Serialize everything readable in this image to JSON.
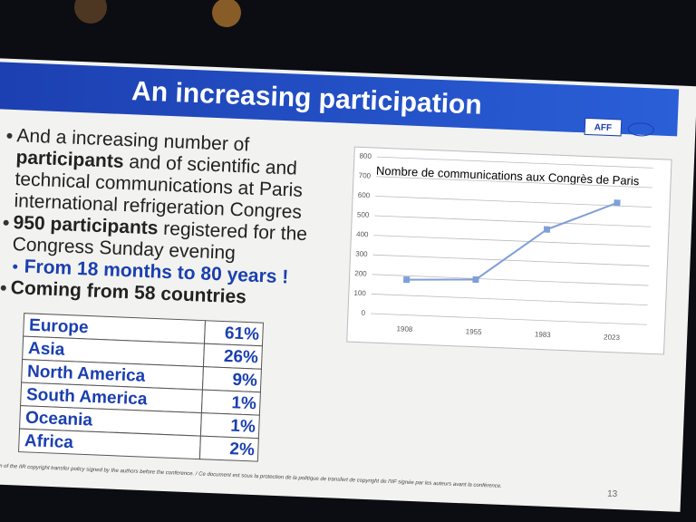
{
  "title": "An increasing participation",
  "logo": "AFF",
  "bullets": [
    {
      "level": 1,
      "lines": [
        [
          {
            "text": "And a increasing number of"
          }
        ],
        [
          {
            "text": "participants",
            "bold": true
          },
          {
            "text": " and of scientific and"
          }
        ],
        [
          {
            "text": "technical communications at Paris"
          }
        ],
        [
          {
            "text": "international refrigeration Congres"
          }
        ]
      ]
    },
    {
      "level": 1,
      "lines": [
        [
          {
            "text": "950 participants",
            "bold": true
          },
          {
            "text": " registered for the"
          }
        ],
        [
          {
            "text": "Congress Sunday evening"
          }
        ]
      ]
    },
    {
      "level": 2,
      "lines": [
        [
          {
            "text": "From 18 months to 80 years !",
            "bold": true
          }
        ]
      ]
    },
    {
      "level": 1,
      "lines": [
        [
          {
            "text": "Coming from 58 countries",
            "bold": true
          }
        ]
      ]
    }
  ],
  "table": {
    "rows": [
      [
        "Europe",
        "61%"
      ],
      [
        "Asia",
        "26%"
      ],
      [
        "North America",
        "9%"
      ],
      [
        "South America",
        "1%"
      ],
      [
        "Oceania",
        "1%"
      ],
      [
        "Africa",
        "2%"
      ]
    ]
  },
  "chart_data": {
    "type": "line",
    "title": "Nombre de communications aux Congrès de Paris",
    "categories": [
      "1908",
      "1955",
      "1983",
      "2023"
    ],
    "values": [
      180,
      195,
      465,
      615
    ],
    "color": "#7f9fd8",
    "ylim": [
      0,
      800
    ],
    "yticks": [
      0,
      100,
      200,
      300,
      400,
      500,
      600,
      700,
      800
    ],
    "grid": true
  },
  "footer": "ction of the IIR copyright transfer policy signed by the authors before the conference. / Ce document est sous la protection de la politique de transfert de copyright de l'IIF signée par les auteurs avant la conférence.",
  "page_number": "13"
}
